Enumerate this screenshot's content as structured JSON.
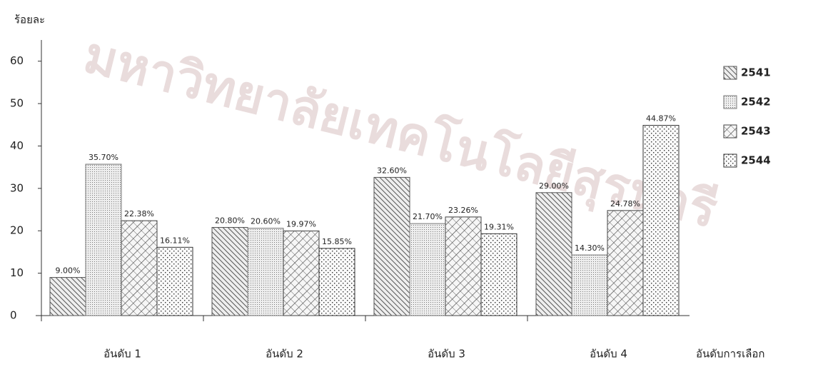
{
  "watermark": "มหาวิทยาลัยเทคโนโลยีสุรนารี",
  "chart_data": {
    "type": "bar",
    "y_label": "ร้อยละ",
    "x_label": "อันดับการเลือก",
    "categories": [
      "อันดับ 1",
      "อันดับ 2",
      "อันดับ 3",
      "อันดับ 4"
    ],
    "series": [
      {
        "name": "2541",
        "color": "#555555",
        "values": [
          9.0,
          20.8,
          32.6,
          29.0
        ],
        "value_labels": [
          "9.00%",
          "20.80%",
          "32.60%",
          "29.00%"
        ]
      },
      {
        "name": "2542",
        "color": "#777777",
        "values": [
          35.7,
          20.6,
          21.7,
          14.3
        ],
        "value_labels": [
          "35.70%",
          "20.60%",
          "21.70%",
          "14.30%"
        ]
      },
      {
        "name": "2543",
        "color": "#444444",
        "values": [
          22.38,
          19.97,
          23.26,
          24.78
        ],
        "value_labels": [
          "22.38%",
          "19.97%",
          "23.26%",
          "24.78%"
        ]
      },
      {
        "name": "2544",
        "color": "#333333",
        "values": [
          16.11,
          15.85,
          19.31,
          44.87
        ],
        "value_labels": [
          "16.11%",
          "15.85%",
          "19.31%",
          "44.87%"
        ]
      }
    ],
    "ylim": [
      0,
      65
    ],
    "yticks": [
      0,
      10,
      20,
      30,
      40,
      50,
      60
    ],
    "grid": false
  }
}
